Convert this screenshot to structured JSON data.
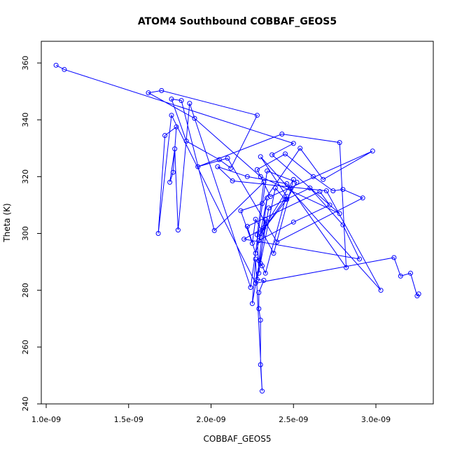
{
  "chart_data": {
    "type": "line",
    "title": "ATOM4 Southbound COBBAF_GEOS5",
    "xlabel": "COBBAF_GEOS5",
    "ylabel": "Theta (K)",
    "xlim": [
      1e-09,
      3.3e-09
    ],
    "ylim": [
      240,
      365
    ],
    "x_ticks": [
      1e-09,
      1.5e-09,
      2e-09,
      2.5e-09,
      3e-09
    ],
    "x_tick_labels": [
      "1.0e-09",
      "1.5e-09",
      "2.0e-09",
      "2.5e-09",
      "3.0e-09"
    ],
    "y_ticks": [
      240,
      260,
      280,
      300,
      320,
      340,
      360
    ],
    "y_tick_labels": [
      "240",
      "260",
      "280",
      "300",
      "320",
      "340",
      "360"
    ],
    "grid": false,
    "series_color": "#0000ff",
    "marker": "open-circle",
    "series": [
      {
        "x": [
          1.06e-09,
          1.11e-09,
          2.5e-09,
          2.37e-09,
          2.78e-09,
          2.3e-09,
          1.9e-09,
          1.62e-09,
          1.7e-09,
          2.28e-09,
          2.12e-09,
          2.05e-09,
          1.85e-09,
          1.76e-09,
          1.82e-09,
          2.02e-09,
          2.32e-09,
          2.28e-09,
          2.29e-09,
          2.33e-09,
          2.27e-09,
          2.22e-09,
          2.66e-09,
          2.72e-09,
          2.5e-09,
          2.29e-09,
          2.34e-09,
          2.29e-09,
          2.3e-09,
          2.31e-09,
          2.33e-09,
          2.45e-09,
          2.39e-09,
          2.28e-09,
          2.32e-09,
          2.29e-09,
          2.29e-09,
          2.3e-09,
          2.3e-09,
          2.31e-09,
          2.27e-09,
          2.25e-09,
          2.35e-09,
          2.6e-09,
          2.8e-09,
          2.9e-09,
          2.2e-09,
          2.32e-09,
          2.5e-09,
          2.38e-09,
          2.27e-09,
          2.25e-09,
          2.18e-09,
          2.31e-09,
          2.54e-09,
          2.68e-09,
          2.98e-09,
          2.36e-09,
          2.28e-09,
          2.45e-09,
          2.62e-09,
          2.74e-09,
          2.8e-09,
          2.92e-09,
          2.4e-09,
          2.1e-09,
          1.92e-09,
          2.43e-09,
          2.78e-09,
          2.82e-09,
          2.48e-09,
          2.46e-09,
          2.22e-09,
          2.04e-09,
          2.13e-09,
          2.7e-09,
          3.03e-09,
          2.3e-09,
          2.46e-09,
          2.3e-09,
          2.46e-09,
          2.52e-09,
          2.34e-09,
          2.24e-09,
          1.87e-09,
          1.8e-09,
          1.78e-09,
          1.75e-09,
          1.77e-09,
          1.79e-09,
          1.72e-09,
          1.68e-09,
          1.76e-09,
          2.27e-09,
          3.11e-09,
          3.15e-09,
          3.21e-09,
          3.25e-09,
          3.26e-09
        ],
        "y": [
          359.2,
          357.7,
          331.7,
          327.7,
          307.0,
          320.0,
          340.5,
          349.5,
          350.3,
          341.6,
          323.0,
          326.0,
          332.5,
          347.3,
          346.8,
          301.0,
          318.0,
          299.5,
          286.0,
          305.0,
          293.0,
          302.5,
          314.7,
          310.0,
          304.0,
          297.5,
          312.5,
          290.5,
          289.4,
          288.6,
          286.0,
          312.0,
          316.0,
          283.8,
          283.5,
          279.2,
          273.5,
          269.5,
          253.8,
          244.5,
          291.0,
          275.3,
          309.0,
          316.0,
          303.0,
          291.0,
          298.0,
          302.0,
          319.0,
          293.0,
          305.0,
          296.5,
          308.0,
          310.5,
          330.0,
          319.0,
          329.0,
          313.0,
          322.5,
          328.0,
          320.0,
          315.0,
          315.5,
          312.5,
          297.0,
          326.5,
          323.5,
          335.0,
          332.0,
          288.0,
          316.0,
          317.5,
          320.0,
          323.5,
          318.5,
          315.0,
          280.0,
          327.0,
          313.0,
          300.0,
          312.0,
          318.0,
          322.0,
          281.0,
          345.8,
          301.2,
          329.8,
          318.0,
          321.5,
          337.5,
          334.5,
          300.0,
          341.6,
          282.5,
          291.5,
          285.0,
          286.0,
          278.0,
          278.7
        ]
      }
    ]
  }
}
